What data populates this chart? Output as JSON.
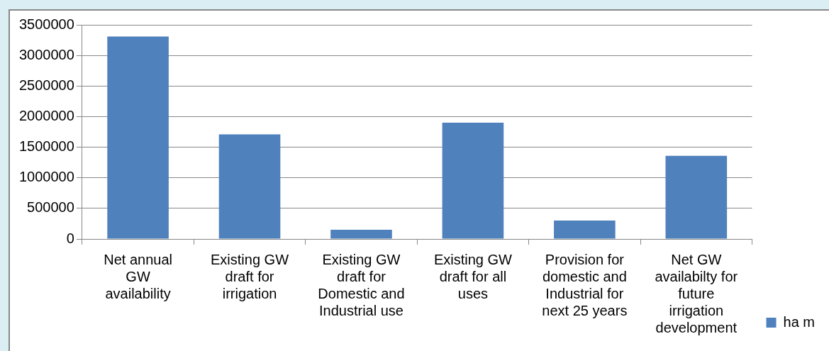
{
  "chart_data": {
    "type": "bar",
    "categories": [
      "Net annual GW availability",
      "Existing GW draft for irrigation",
      "Existing GW draft for Domestic and Industrial use",
      "Existing GW draft for all uses",
      "Provision for domestic and Industrial for next 25 years",
      "Net GW availabilty for future irrigation development"
    ],
    "series": [
      {
        "name": "ha m",
        "color": "#4f81bd",
        "values": [
          3310000,
          1710000,
          150000,
          1900000,
          300000,
          1360000
        ]
      }
    ],
    "ylim": [
      0,
      3500000
    ],
    "yticks": [
      0,
      500000,
      1000000,
      1500000,
      2000000,
      2500000,
      3000000,
      3500000
    ],
    "grid": "y",
    "legend": "right"
  }
}
